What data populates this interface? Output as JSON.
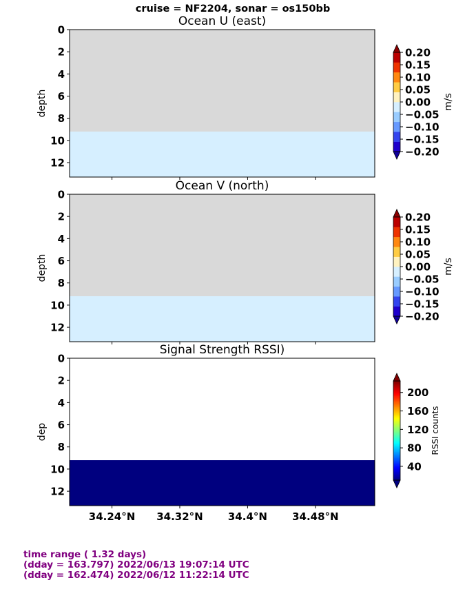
{
  "suptitle": "cruise = NF2204,  sonar = os150bb",
  "colors": {
    "no_data": "#d9d9d9",
    "light_fill": "#d6efff",
    "navy": "#00007f",
    "footer_text": "#800080"
  },
  "xaxis": {
    "ticks": [
      "34.24°N",
      "34.32°N",
      "34.4°N",
      "34.48°N"
    ],
    "range": [
      34.19,
      34.55
    ]
  },
  "chart_data": [
    {
      "type": "heatmap",
      "title": "Ocean U (east)",
      "ylabel": "depth",
      "ylim": [
        13.3,
        0
      ],
      "yticks": [
        "0",
        "2",
        "4",
        "6",
        "8",
        "10",
        "12"
      ],
      "bands": [
        {
          "depth_from": 0,
          "depth_to": 9.2,
          "fill": "no_data"
        },
        {
          "depth_from": 9.2,
          "depth_to": 13.3,
          "fill": "light_fill"
        }
      ],
      "colorbar": {
        "label": "m/s",
        "ticks": [
          "0.20",
          "0.15",
          "0.10",
          "0.05",
          "0.00",
          "−0.05",
          "−0.10",
          "−0.15",
          "−0.20"
        ],
        "range": [
          -0.2,
          0.2
        ],
        "colors": [
          "#1e00cc",
          "#3344ee",
          "#6699ff",
          "#99ccff",
          "#d6efff",
          "#fff2c0",
          "#ffcc44",
          "#ff8811",
          "#ee3300",
          "#bb0000"
        ]
      }
    },
    {
      "type": "heatmap",
      "title": "Ocean V (north)",
      "ylabel": "depth",
      "ylim": [
        13.3,
        0
      ],
      "yticks": [
        "0",
        "2",
        "4",
        "6",
        "8",
        "10",
        "12"
      ],
      "bands": [
        {
          "depth_from": 0,
          "depth_to": 9.2,
          "fill": "no_data"
        },
        {
          "depth_from": 9.2,
          "depth_to": 13.3,
          "fill": "light_fill"
        }
      ],
      "colorbar": {
        "label": "m/s",
        "ticks": [
          "0.20",
          "0.15",
          "0.10",
          "0.05",
          "0.00",
          "−0.05",
          "−0.10",
          "−0.15",
          "−0.20"
        ],
        "range": [
          -0.2,
          0.2
        ],
        "colors": [
          "#1e00cc",
          "#3344ee",
          "#6699ff",
          "#99ccff",
          "#d6efff",
          "#fff2c0",
          "#ffcc44",
          "#ff8811",
          "#ee3300",
          "#bb0000"
        ]
      }
    },
    {
      "type": "heatmap",
      "title": "Signal Strength RSSI)",
      "ylabel": "dep",
      "ylim": [
        13.3,
        0
      ],
      "yticks": [
        "0",
        "2",
        "4",
        "6",
        "8",
        "10",
        "12"
      ],
      "bands": [
        {
          "depth_from": 0,
          "depth_to": 9.2,
          "fill": "white"
        },
        {
          "depth_from": 9.2,
          "depth_to": 13.3,
          "fill": "navy"
        }
      ],
      "colorbar": {
        "label": "RSSI counts",
        "ticks": [
          "200",
          "160",
          "120",
          "80",
          "40"
        ],
        "tick_values": [
          200,
          160,
          120,
          80,
          40
        ],
        "range": [
          10,
          225
        ],
        "colormap": "jet"
      }
    }
  ],
  "footer": {
    "line1": "time range ( 1.32 days)",
    "line2": "(dday = 163.797) 2022/06/13 19:07:14 UTC",
    "line3": "(dday = 162.474) 2022/06/12 11:22:14 UTC"
  }
}
